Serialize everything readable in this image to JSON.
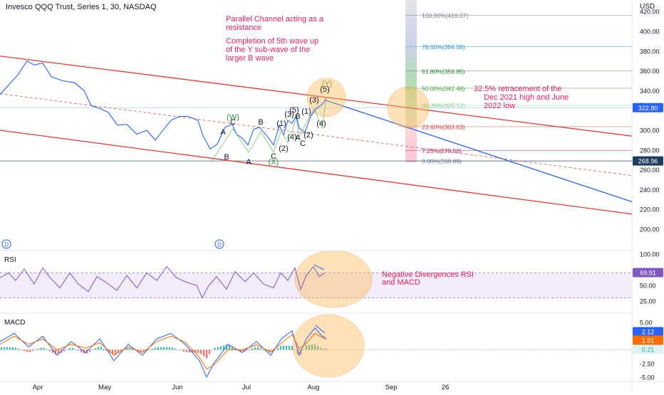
{
  "header": {
    "title": "Invesco QQQ Trust, Series 1, 30, NASDAQ",
    "currency": "USD"
  },
  "price_axis": {
    "ticks": [
      {
        "v": 400,
        "t": "400.00"
      },
      {
        "v": 380,
        "t": "380.00"
      },
      {
        "v": 360,
        "t": "360.00"
      },
      {
        "v": 340,
        "t": "340.00"
      },
      {
        "v": 300,
        "t": "300.00"
      },
      {
        "v": 280,
        "t": "280.00"
      },
      {
        "v": 260,
        "t": "260.00"
      },
      {
        "v": 240,
        "t": "240.00"
      },
      {
        "v": 220,
        "t": "220.00"
      },
      {
        "v": 200,
        "t": "200.00"
      }
    ],
    "top_partial": "420.00",
    "last_price": "322.80",
    "last_price_color": "#2962ff",
    "support_price": "268.96",
    "support_color": "#1e3a5f"
  },
  "rsi_axis": {
    "ticks": [
      {
        "v": 100,
        "t": "100.00"
      },
      {
        "v": 50,
        "t": "50.00"
      },
      {
        "v": 25,
        "t": "25.00"
      }
    ],
    "value": "69.91",
    "value_color": "#7e57c2"
  },
  "macd_axis": {
    "ticks": [
      {
        "v": 5,
        "t": "5.00"
      },
      {
        "v": -2.5,
        "t": "-2.50"
      },
      {
        "v": -5,
        "t": "-5.00"
      }
    ],
    "badges": [
      {
        "t": "2.12",
        "color": "#2962ff"
      },
      {
        "t": "1.91",
        "color": "#ff6d00"
      },
      {
        "t": "0.21",
        "color": "#e0f2f1",
        "text_color": "#26a69a"
      }
    ]
  },
  "time_axis": {
    "labels": [
      "Apr",
      "May",
      "Jun",
      "Jul",
      "Aug",
      "Sep",
      "26"
    ]
  },
  "panes": {
    "rsi_label": "RSI",
    "macd_label": "MACD",
    "dividend_marker": "D"
  },
  "annotations": {
    "resistance": [
      "Parallel Channel acting as a",
      "resistance"
    ],
    "wave": [
      "Completion of 5th wave up",
      "of the Y sub-wave of the",
      "larger B wave"
    ],
    "retracement": [
      "32.5% retracement of the",
      "Dec 2021 high and June",
      "2022 low"
    ],
    "divergence": [
      "Negative Divergences RSI",
      "and MACD"
    ]
  },
  "fib_levels": [
    {
      "label": "100.00%(416.07)",
      "price": 416.07,
      "color": "#787b86"
    },
    {
      "label": "78.60%(384.58)",
      "price": 384.58,
      "color": "#2196f3"
    },
    {
      "label": "61.80%(359.85)",
      "price": 359.85,
      "color": "#2e7d32"
    },
    {
      "label": "50.00%(342.48)",
      "price": 342.48,
      "color": "#43a047"
    },
    {
      "label": "38.20%(325.12)",
      "price": 325.12,
      "color": "#81c784"
    },
    {
      "label": "23.60%(303.63)",
      "price": 303.63,
      "color": "#e53935"
    },
    {
      "label": "7.25%(279.56)",
      "price": 279.56,
      "color": "#c2185b"
    },
    {
      "label": "0.00%(268.89)",
      "price": 268.89,
      "color": "#787b86"
    }
  ],
  "wave_labels": [
    {
      "t": "A",
      "x": 313,
      "y": 189,
      "c": "#131722"
    },
    {
      "t": "C",
      "x": 327,
      "y": 175,
      "c": "#131722"
    },
    {
      "t": "(W)",
      "x": 327,
      "y": 168,
      "c": "#388e3c"
    },
    {
      "t": "B",
      "x": 318,
      "y": 224,
      "c": "#131722"
    },
    {
      "t": "B",
      "x": 366,
      "y": 175,
      "c": "#131722"
    },
    {
      "t": "A",
      "x": 349,
      "y": 231,
      "c": "#131722"
    },
    {
      "t": "C",
      "x": 384,
      "y": 223,
      "c": "#131722"
    },
    {
      "t": "(X)",
      "x": 384,
      "y": 231,
      "c": "#388e3c"
    },
    {
      "t": "(1)",
      "x": 395,
      "y": 177,
      "c": "#131722"
    },
    {
      "t": "(2)",
      "x": 398,
      "y": 212,
      "c": "#131722"
    },
    {
      "t": "(3)",
      "x": 406,
      "y": 164,
      "c": "#131722"
    },
    {
      "t": "(5)",
      "x": 413,
      "y": 158,
      "c": "#131722"
    },
    {
      "t": "B",
      "x": 418,
      "y": 167,
      "c": "#131722"
    },
    {
      "t": "(4)",
      "x": 410,
      "y": 196,
      "c": "#131722"
    },
    {
      "t": "A",
      "x": 418,
      "y": 197,
      "c": "#131722"
    },
    {
      "t": "C",
      "x": 425,
      "y": 205,
      "c": "#131722"
    },
    {
      "t": "(1)",
      "x": 430,
      "y": 160,
      "c": "#131722"
    },
    {
      "t": "(2)",
      "x": 433,
      "y": 193,
      "c": "#131722"
    },
    {
      "t": "(3)",
      "x": 441,
      "y": 144,
      "c": "#131722"
    },
    {
      "t": "(4)",
      "x": 451,
      "y": 177,
      "c": "#131722"
    },
    {
      "t": "(5)",
      "x": 456,
      "y": 129,
      "c": "#131722"
    },
    {
      "t": "(Y)",
      "x": 459,
      "y": 121,
      "c": "#9e9d24"
    }
  ],
  "chart_data": {
    "type": "line",
    "price_series": [
      [
        0,
        336
      ],
      [
        10,
        344
      ],
      [
        25,
        356
      ],
      [
        38,
        370
      ],
      [
        48,
        366
      ],
      [
        60,
        368
      ],
      [
        72,
        354
      ],
      [
        88,
        350
      ],
      [
        105,
        348
      ],
      [
        118,
        340
      ],
      [
        128,
        325
      ],
      [
        140,
        322
      ],
      [
        152,
        318
      ],
      [
        165,
        305
      ],
      [
        178,
        306
      ],
      [
        192,
        296
      ],
      [
        206,
        300
      ],
      [
        218,
        290
      ],
      [
        232,
        303
      ],
      [
        240,
        310
      ],
      [
        252,
        314
      ],
      [
        264,
        314
      ],
      [
        278,
        310
      ],
      [
        284,
        296
      ],
      [
        295,
        281
      ],
      [
        305,
        286
      ],
      [
        316,
        303
      ],
      [
        326,
        306
      ],
      [
        332,
        296
      ],
      [
        340,
        292
      ],
      [
        348,
        285
      ],
      [
        356,
        301
      ],
      [
        364,
        303
      ],
      [
        376,
        293
      ],
      [
        384,
        285
      ],
      [
        392,
        305
      ],
      [
        398,
        295
      ],
      [
        404,
        310
      ],
      [
        410,
        307
      ],
      [
        416,
        315
      ],
      [
        420,
        302
      ],
      [
        428,
        298
      ],
      [
        436,
        314
      ],
      [
        444,
        322
      ],
      [
        452,
        326
      ],
      [
        458,
        332
      ]
    ],
    "rsi_series": [
      [
        0,
        62
      ],
      [
        12,
        70
      ],
      [
        22,
        58
      ],
      [
        34,
        76
      ],
      [
        48,
        52
      ],
      [
        60,
        78
      ],
      [
        72,
        60
      ],
      [
        84,
        46
      ],
      [
        98,
        70
      ],
      [
        110,
        52
      ],
      [
        124,
        40
      ],
      [
        136,
        64
      ],
      [
        150,
        54
      ],
      [
        164,
        42
      ],
      [
        178,
        66
      ],
      [
        192,
        46
      ],
      [
        206,
        70
      ],
      [
        220,
        58
      ],
      [
        234,
        80
      ],
      [
        248,
        62
      ],
      [
        262,
        55
      ],
      [
        276,
        50
      ],
      [
        284,
        30
      ],
      [
        292,
        48
      ],
      [
        304,
        64
      ],
      [
        318,
        44
      ],
      [
        330,
        72
      ],
      [
        344,
        56
      ],
      [
        356,
        70
      ],
      [
        370,
        52
      ],
      [
        384,
        46
      ],
      [
        394,
        70
      ],
      [
        404,
        58
      ],
      [
        414,
        78
      ],
      [
        422,
        44
      ],
      [
        430,
        66
      ],
      [
        440,
        80
      ],
      [
        448,
        64
      ],
      [
        456,
        70
      ]
    ],
    "macd_line": [
      [
        0,
        1.5
      ],
      [
        20,
        3
      ],
      [
        40,
        0.5
      ],
      [
        60,
        2.5
      ],
      [
        80,
        -1
      ],
      [
        100,
        1.5
      ],
      [
        120,
        -0.5
      ],
      [
        140,
        2
      ],
      [
        160,
        -2
      ],
      [
        180,
        1
      ],
      [
        200,
        -1
      ],
      [
        220,
        2
      ],
      [
        240,
        3
      ],
      [
        260,
        1
      ],
      [
        280,
        -2
      ],
      [
        290,
        -5
      ],
      [
        300,
        -2.5
      ],
      [
        320,
        1
      ],
      [
        340,
        -0.5
      ],
      [
        360,
        1.5
      ],
      [
        380,
        -1
      ],
      [
        395,
        2
      ],
      [
        410,
        3.5
      ],
      [
        420,
        -1
      ],
      [
        430,
        2
      ],
      [
        442,
        4
      ],
      [
        452,
        2.5
      ],
      [
        458,
        2.12
      ]
    ],
    "signal_line": [
      [
        0,
        1
      ],
      [
        20,
        2.5
      ],
      [
        40,
        1
      ],
      [
        60,
        2
      ],
      [
        80,
        0
      ],
      [
        100,
        1
      ],
      [
        120,
        0.3
      ],
      [
        140,
        1.3
      ],
      [
        160,
        -1
      ],
      [
        180,
        0.5
      ],
      [
        200,
        -0.5
      ],
      [
        220,
        1.5
      ],
      [
        240,
        2.5
      ],
      [
        260,
        1.4
      ],
      [
        280,
        -1.4
      ],
      [
        290,
        -3.5
      ],
      [
        300,
        -2.8
      ],
      [
        320,
        0
      ],
      [
        340,
        0
      ],
      [
        360,
        0.9
      ],
      [
        380,
        -0.4
      ],
      [
        395,
        1.2
      ],
      [
        410,
        2.8
      ],
      [
        420,
        0.2
      ],
      [
        430,
        1.2
      ],
      [
        442,
        3
      ],
      [
        452,
        2.3
      ],
      [
        458,
        1.91
      ]
    ],
    "channel_upper": [
      [
        0,
        375
      ],
      [
        932,
        290
      ]
    ],
    "channel_lower": [
      [
        0,
        300
      ],
      [
        932,
        211
      ]
    ],
    "channel_mid": [
      [
        0,
        337
      ],
      [
        932,
        250
      ]
    ],
    "projection": [
      [
        458,
        330
      ],
      [
        932,
        217
      ]
    ]
  }
}
